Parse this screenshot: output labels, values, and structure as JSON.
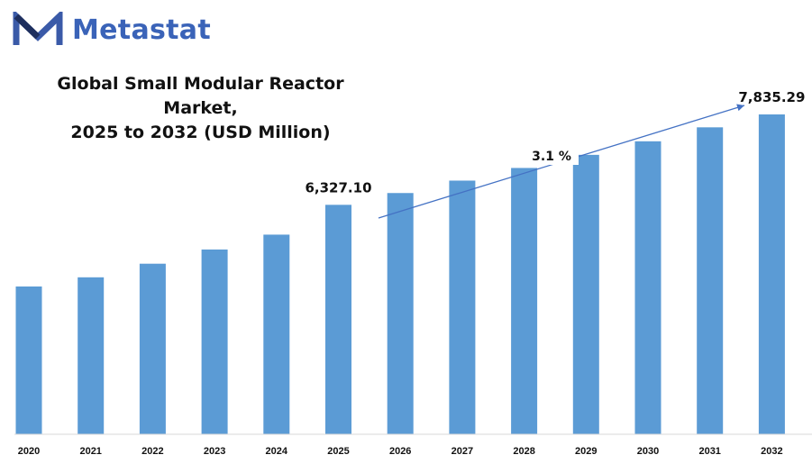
{
  "brand": {
    "name": "Metastat"
  },
  "chart_data": {
    "type": "bar",
    "title_line1": "Global Small Modular Reactor Market,",
    "title_line2": "2025 to 2032 (USD Million)",
    "categories": [
      "2020",
      "2021",
      "2022",
      "2023",
      "2024",
      "2025",
      "2026",
      "2027",
      "2028",
      "2029",
      "2030",
      "2031",
      "2032"
    ],
    "values": [
      4965,
      5118,
      5345,
      5582,
      5830,
      6327.1,
      6524,
      6731,
      6942,
      7161,
      7387,
      7620,
      7835.29
    ],
    "data_labels": [
      {
        "index": 5,
        "text": "6,327.10"
      },
      {
        "index": 12,
        "text": "7,835.29"
      }
    ],
    "growth_annotation": "3.1 %",
    "bar_color": "#5b9bd5",
    "ylim": [
      2500,
      8100
    ],
    "grid": false,
    "legend": "none"
  }
}
